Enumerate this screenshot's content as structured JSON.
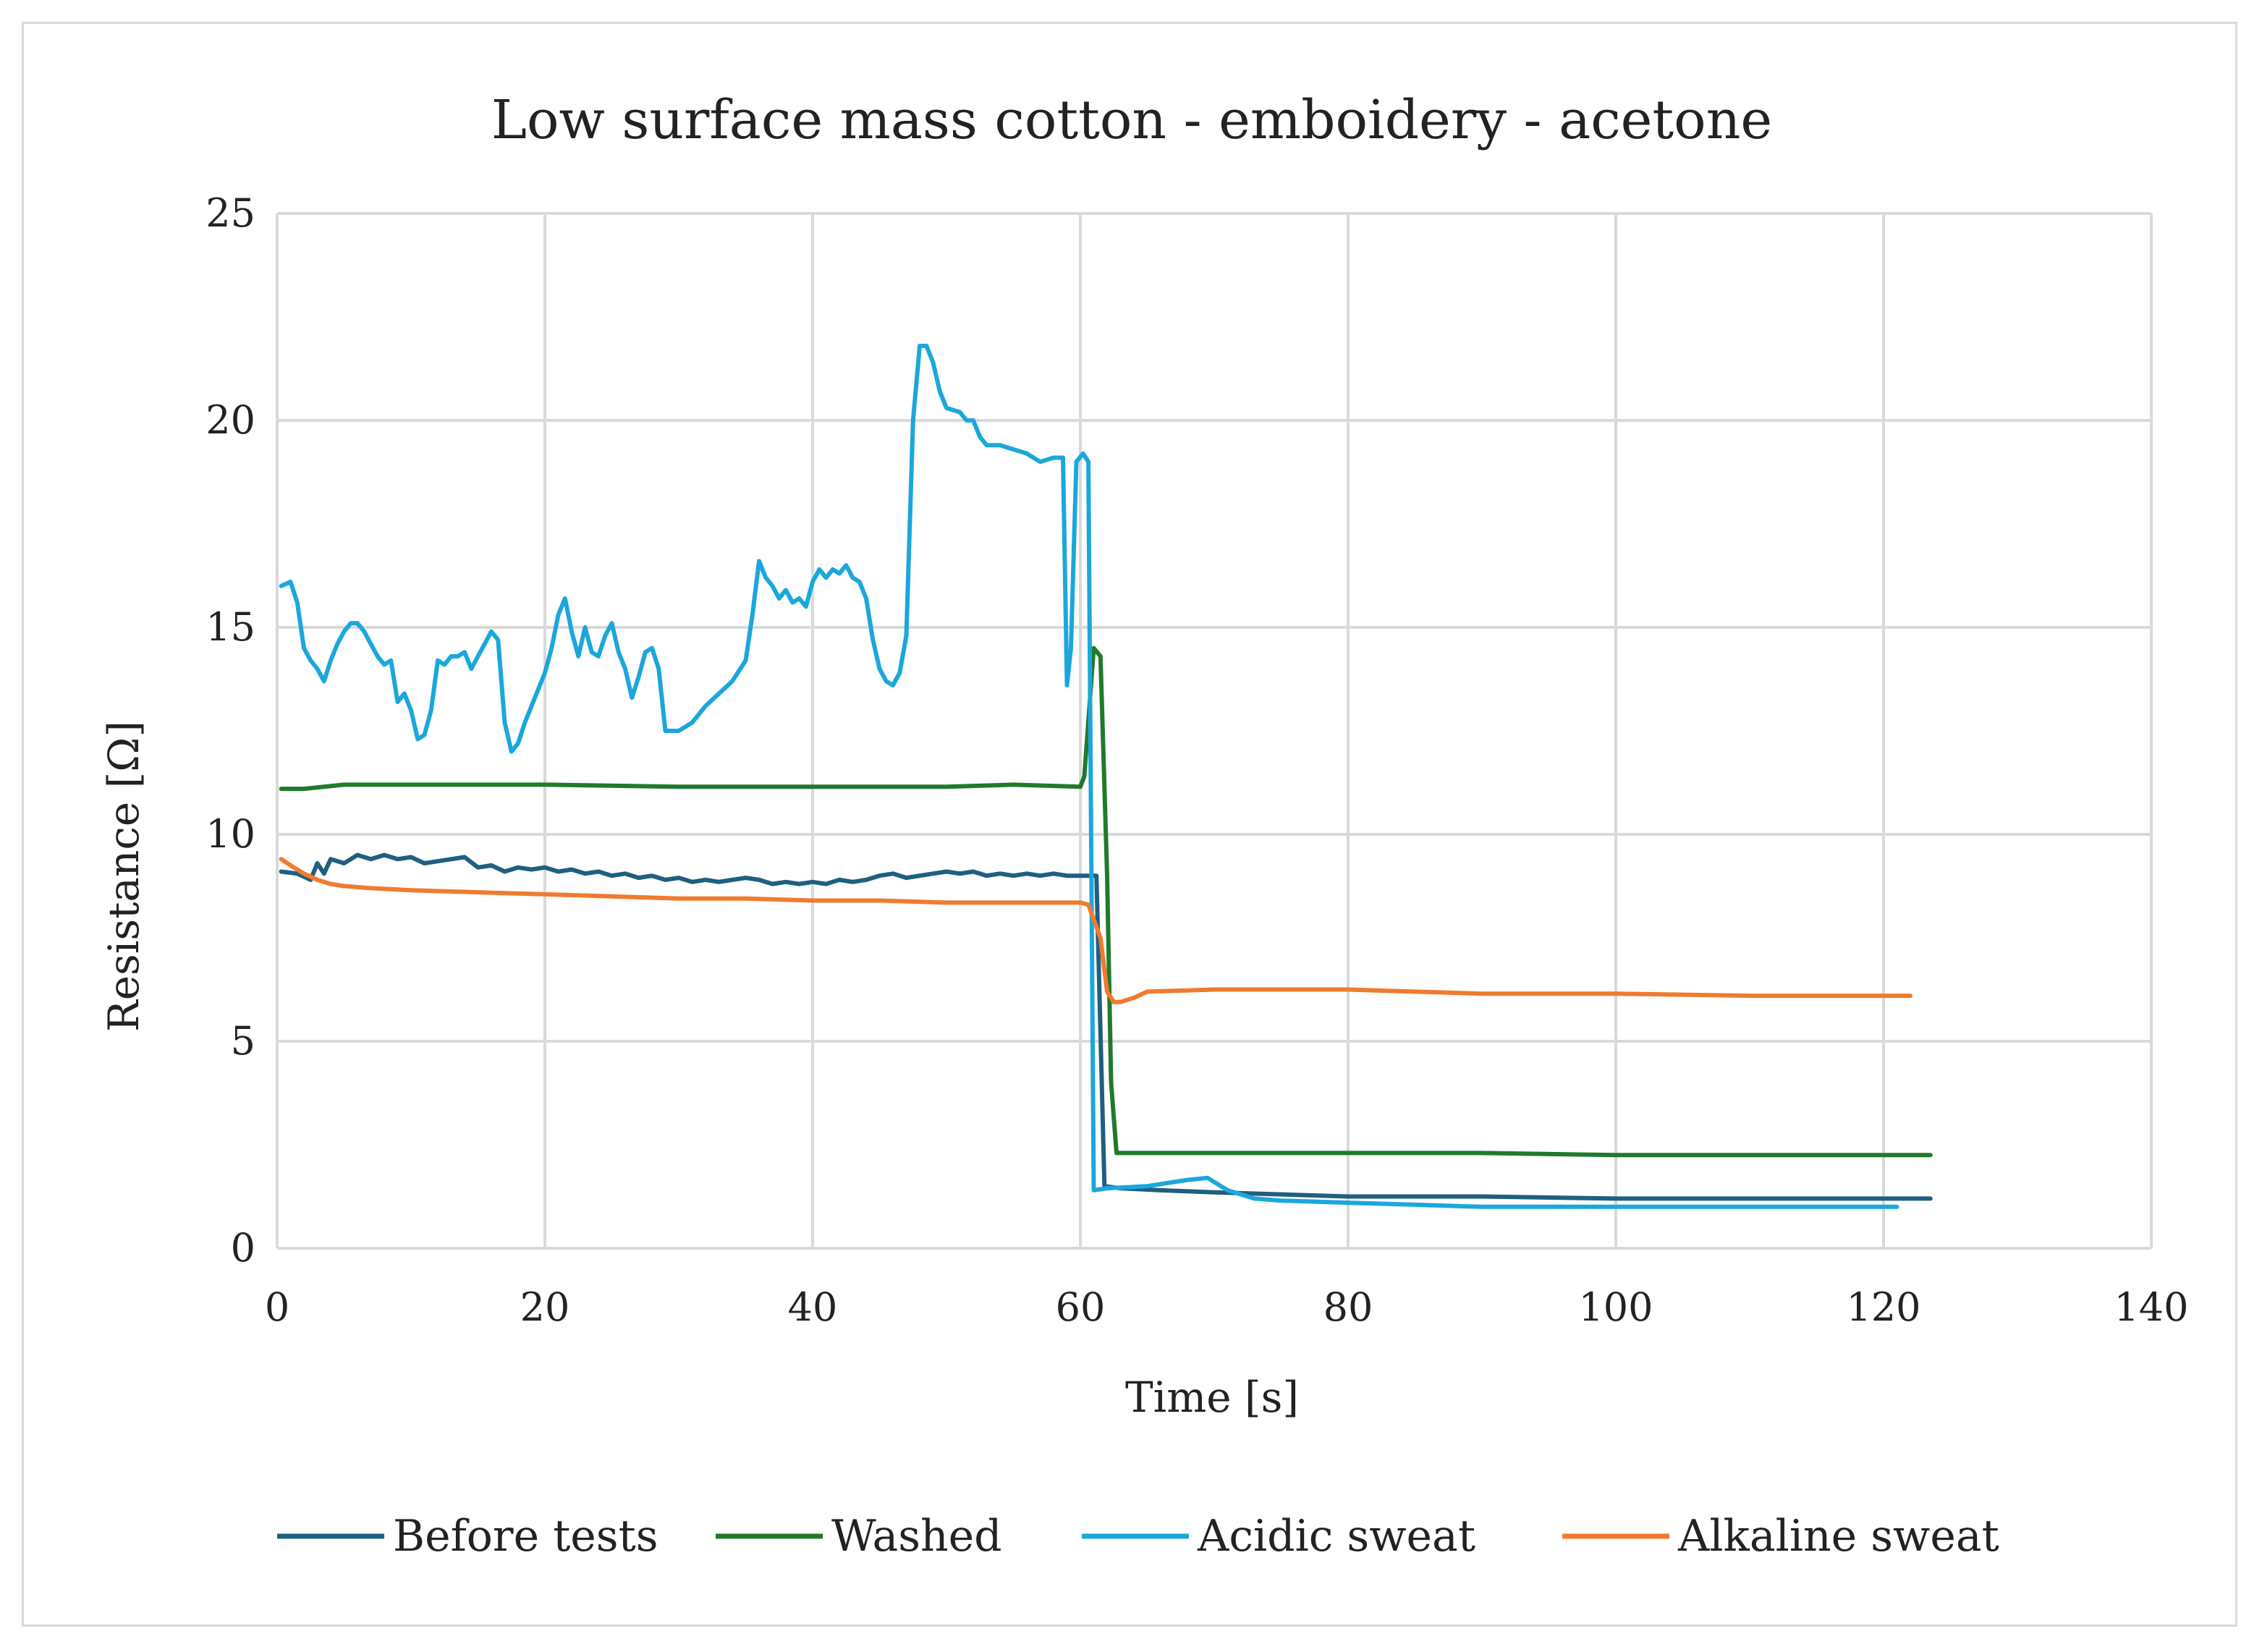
{
  "chart_data": {
    "type": "line",
    "title": "Low surface mass cotton - emboidery - acetone",
    "xlabel": "Time [s]",
    "ylabel": "Resistance [Ω]",
    "xlim": [
      0,
      140
    ],
    "ylim": [
      0,
      25
    ],
    "xticks": [
      "0",
      "20",
      "40",
      "60",
      "80",
      "100",
      "120",
      "140"
    ],
    "yticks": [
      "0",
      "5",
      "10",
      "15",
      "20",
      "25"
    ],
    "grid": true,
    "legend_position": "bottom",
    "series": [
      {
        "name": "Before tests",
        "color": "#1f5f7f",
        "points": [
          [
            0.3,
            9.1
          ],
          [
            1.5,
            9.05
          ],
          [
            2.5,
            8.9
          ],
          [
            3,
            9.3
          ],
          [
            3.5,
            9.05
          ],
          [
            4,
            9.4
          ],
          [
            5,
            9.3
          ],
          [
            6,
            9.5
          ],
          [
            7,
            9.4
          ],
          [
            8,
            9.5
          ],
          [
            9,
            9.4
          ],
          [
            10,
            9.45
          ],
          [
            11,
            9.3
          ],
          [
            12,
            9.35
          ],
          [
            13,
            9.4
          ],
          [
            14,
            9.45
          ],
          [
            15,
            9.2
          ],
          [
            16,
            9.25
          ],
          [
            17,
            9.1
          ],
          [
            18,
            9.2
          ],
          [
            19,
            9.15
          ],
          [
            20,
            9.2
          ],
          [
            21,
            9.1
          ],
          [
            22,
            9.15
          ],
          [
            23,
            9.05
          ],
          [
            24,
            9.1
          ],
          [
            25,
            9.0
          ],
          [
            26,
            9.05
          ],
          [
            27,
            8.95
          ],
          [
            28,
            9.0
          ],
          [
            29,
            8.9
          ],
          [
            30,
            8.95
          ],
          [
            31,
            8.85
          ],
          [
            32,
            8.9
          ],
          [
            33,
            8.85
          ],
          [
            34,
            8.9
          ],
          [
            35,
            8.95
          ],
          [
            36,
            8.9
          ],
          [
            37,
            8.8
          ],
          [
            38,
            8.85
          ],
          [
            39,
            8.8
          ],
          [
            40,
            8.85
          ],
          [
            41,
            8.8
          ],
          [
            42,
            8.9
          ],
          [
            43,
            8.85
          ],
          [
            44,
            8.9
          ],
          [
            45,
            9.0
          ],
          [
            46,
            9.05
          ],
          [
            47,
            8.95
          ],
          [
            48,
            9.0
          ],
          [
            49,
            9.05
          ],
          [
            50,
            9.1
          ],
          [
            51,
            9.05
          ],
          [
            52,
            9.1
          ],
          [
            53,
            9.0
          ],
          [
            54,
            9.05
          ],
          [
            55,
            9.0
          ],
          [
            56,
            9.05
          ],
          [
            57,
            9.0
          ],
          [
            58,
            9.05
          ],
          [
            59,
            9.0
          ],
          [
            60,
            9.0
          ],
          [
            61.2,
            9.0
          ],
          [
            61.8,
            1.5
          ],
          [
            63,
            1.45
          ],
          [
            66,
            1.4
          ],
          [
            70,
            1.35
          ],
          [
            75,
            1.3
          ],
          [
            80,
            1.25
          ],
          [
            85,
            1.25
          ],
          [
            90,
            1.25
          ],
          [
            100,
            1.2
          ],
          [
            110,
            1.2
          ],
          [
            123.5,
            1.2
          ]
        ]
      },
      {
        "name": "Washed",
        "color": "#217a2c",
        "points": [
          [
            0.3,
            11.1
          ],
          [
            2,
            11.1
          ],
          [
            5,
            11.2
          ],
          [
            10,
            11.2
          ],
          [
            20,
            11.2
          ],
          [
            30,
            11.15
          ],
          [
            40,
            11.15
          ],
          [
            50,
            11.15
          ],
          [
            55,
            11.2
          ],
          [
            60,
            11.15
          ],
          [
            60.3,
            11.4
          ],
          [
            61,
            14.5
          ],
          [
            61.5,
            14.3
          ],
          [
            62,
            9.0
          ],
          [
            62.3,
            4.0
          ],
          [
            62.7,
            2.3
          ],
          [
            65,
            2.3
          ],
          [
            70,
            2.3
          ],
          [
            80,
            2.3
          ],
          [
            90,
            2.3
          ],
          [
            100,
            2.25
          ],
          [
            110,
            2.25
          ],
          [
            123.5,
            2.25
          ]
        ]
      },
      {
        "name": "Acidic sweat",
        "color": "#1ba7dc",
        "points": [
          [
            0.3,
            16.0
          ],
          [
            1,
            16.1
          ],
          [
            1.5,
            15.6
          ],
          [
            2,
            14.5
          ],
          [
            2.5,
            14.2
          ],
          [
            3,
            14.0
          ],
          [
            3.5,
            13.7
          ],
          [
            4,
            14.2
          ],
          [
            4.5,
            14.6
          ],
          [
            5,
            14.9
          ],
          [
            5.5,
            15.1
          ],
          [
            6,
            15.1
          ],
          [
            6.5,
            14.9
          ],
          [
            7,
            14.6
          ],
          [
            7.5,
            14.3
          ],
          [
            8,
            14.1
          ],
          [
            8.5,
            14.2
          ],
          [
            9,
            13.2
          ],
          [
            9.5,
            13.4
          ],
          [
            10,
            13.0
          ],
          [
            10.5,
            12.3
          ],
          [
            11,
            12.4
          ],
          [
            11.5,
            13.0
          ],
          [
            12,
            14.2
          ],
          [
            12.5,
            14.1
          ],
          [
            13,
            14.3
          ],
          [
            13.5,
            14.3
          ],
          [
            14,
            14.4
          ],
          [
            14.5,
            14.0
          ],
          [
            15,
            14.3
          ],
          [
            15.5,
            14.6
          ],
          [
            16,
            14.9
          ],
          [
            16.5,
            14.7
          ],
          [
            17,
            12.7
          ],
          [
            17.5,
            12.0
          ],
          [
            18,
            12.2
          ],
          [
            18.5,
            12.7
          ],
          [
            19,
            13.1
          ],
          [
            19.5,
            13.5
          ],
          [
            20,
            13.9
          ],
          [
            20.5,
            14.5
          ],
          [
            21,
            15.3
          ],
          [
            21.5,
            15.7
          ],
          [
            22,
            14.9
          ],
          [
            22.5,
            14.3
          ],
          [
            23,
            15.0
          ],
          [
            23.5,
            14.4
          ],
          [
            24,
            14.3
          ],
          [
            24.5,
            14.8
          ],
          [
            25,
            15.1
          ],
          [
            25.5,
            14.4
          ],
          [
            26,
            14.0
          ],
          [
            26.5,
            13.3
          ],
          [
            27,
            13.8
          ],
          [
            27.5,
            14.4
          ],
          [
            28,
            14.5
          ],
          [
            28.5,
            14.0
          ],
          [
            29,
            12.5
          ],
          [
            30,
            12.5
          ],
          [
            31,
            12.7
          ],
          [
            32,
            13.1
          ],
          [
            33,
            13.4
          ],
          [
            34,
            13.7
          ],
          [
            35,
            14.2
          ],
          [
            35.5,
            15.3
          ],
          [
            36,
            16.6
          ],
          [
            36.5,
            16.2
          ],
          [
            37,
            16.0
          ],
          [
            37.5,
            15.7
          ],
          [
            38,
            15.9
          ],
          [
            38.5,
            15.6
          ],
          [
            39,
            15.7
          ],
          [
            39.5,
            15.5
          ],
          [
            40,
            16.1
          ],
          [
            40.5,
            16.4
          ],
          [
            41,
            16.2
          ],
          [
            41.5,
            16.4
          ],
          [
            42,
            16.3
          ],
          [
            42.5,
            16.5
          ],
          [
            43,
            16.2
          ],
          [
            43.5,
            16.1
          ],
          [
            44,
            15.7
          ],
          [
            44.5,
            14.7
          ],
          [
            45,
            14.0
          ],
          [
            45.5,
            13.7
          ],
          [
            46,
            13.6
          ],
          [
            46.5,
            13.9
          ],
          [
            47,
            14.8
          ],
          [
            47.5,
            20.0
          ],
          [
            48,
            21.8
          ],
          [
            48.5,
            21.8
          ],
          [
            49,
            21.4
          ],
          [
            49.5,
            20.7
          ],
          [
            50,
            20.3
          ],
          [
            51,
            20.2
          ],
          [
            51.5,
            20.0
          ],
          [
            52,
            20.0
          ],
          [
            52.5,
            19.6
          ],
          [
            53,
            19.4
          ],
          [
            54,
            19.4
          ],
          [
            55,
            19.3
          ],
          [
            56,
            19.2
          ],
          [
            57,
            19.0
          ],
          [
            58,
            19.1
          ],
          [
            58.7,
            19.1
          ],
          [
            59,
            13.6
          ],
          [
            59.3,
            14.5
          ],
          [
            59.7,
            19.0
          ],
          [
            60.2,
            19.2
          ],
          [
            60.6,
            19.0
          ],
          [
            61,
            1.4
          ],
          [
            62,
            1.45
          ],
          [
            65,
            1.5
          ],
          [
            68,
            1.65
          ],
          [
            69.5,
            1.7
          ],
          [
            71,
            1.4
          ],
          [
            73,
            1.2
          ],
          [
            75,
            1.15
          ],
          [
            80,
            1.1
          ],
          [
            85,
            1.05
          ],
          [
            90,
            1.0
          ],
          [
            100,
            1.0
          ],
          [
            110,
            1.0
          ],
          [
            121,
            1.0
          ]
        ]
      },
      {
        "name": "Alkaline sweat",
        "color": "#ef7b2f",
        "points": [
          [
            0.3,
            9.4
          ],
          [
            1,
            9.25
          ],
          [
            2,
            9.05
          ],
          [
            3,
            8.9
          ],
          [
            4,
            8.8
          ],
          [
            5,
            8.75
          ],
          [
            7,
            8.7
          ],
          [
            10,
            8.65
          ],
          [
            15,
            8.6
          ],
          [
            20,
            8.55
          ],
          [
            25,
            8.5
          ],
          [
            30,
            8.45
          ],
          [
            35,
            8.45
          ],
          [
            40,
            8.4
          ],
          [
            45,
            8.4
          ],
          [
            50,
            8.35
          ],
          [
            55,
            8.35
          ],
          [
            60,
            8.35
          ],
          [
            60.6,
            8.3
          ],
          [
            61.5,
            7.5
          ],
          [
            62,
            6.2
          ],
          [
            62.5,
            5.95
          ],
          [
            63,
            5.95
          ],
          [
            64,
            6.05
          ],
          [
            65,
            6.2
          ],
          [
            70,
            6.25
          ],
          [
            75,
            6.25
          ],
          [
            80,
            6.25
          ],
          [
            85,
            6.2
          ],
          [
            90,
            6.15
          ],
          [
            100,
            6.15
          ],
          [
            110,
            6.1
          ],
          [
            122,
            6.1
          ]
        ]
      }
    ]
  }
}
